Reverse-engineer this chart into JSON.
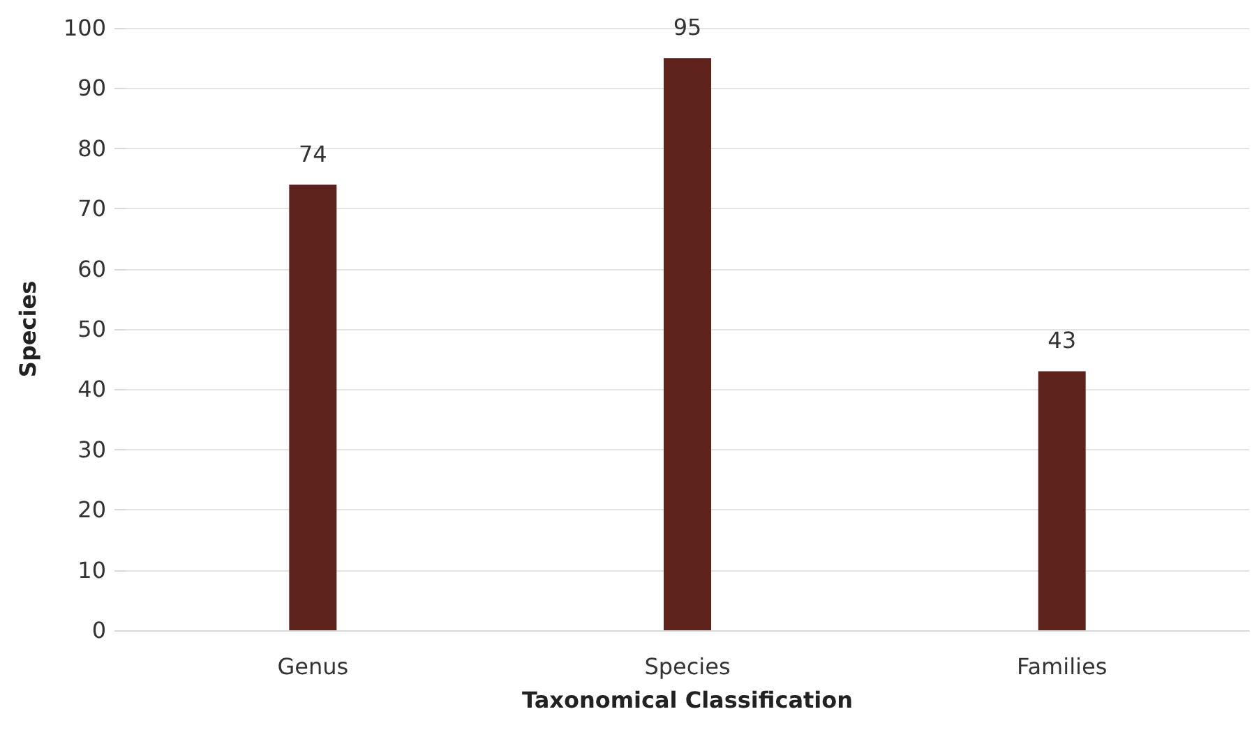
{
  "chart_data": {
    "type": "bar",
    "xlabel": "Taxonomical Classification",
    "ylabel": "Species",
    "categories": [
      "Genus",
      "Species",
      "Families"
    ],
    "values": [
      74,
      95,
      43
    ],
    "color": "#5e221d",
    "ylim": [
      0,
      100
    ],
    "yticks": [
      0,
      10,
      20,
      30,
      40,
      50,
      60,
      70,
      80,
      90,
      100
    ],
    "grid": "y",
    "data_labels": true
  }
}
